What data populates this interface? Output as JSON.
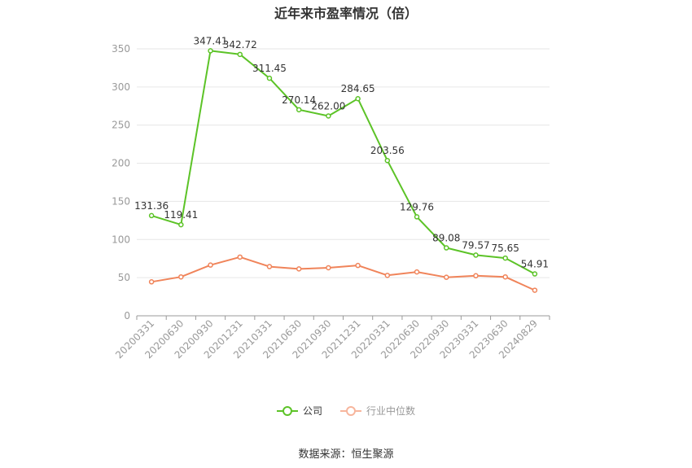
{
  "chart_data": {
    "type": "line",
    "title": "近年来市盈率情况（倍）",
    "categories": [
      "20200331",
      "20200630",
      "20200930",
      "20201231",
      "20210331",
      "20210630",
      "20210930",
      "20211231",
      "20220331",
      "20220630",
      "20220930",
      "20230331",
      "20230630",
      "20240829"
    ],
    "ylim": [
      0,
      350
    ],
    "yticks": [
      0,
      50,
      100,
      150,
      200,
      250,
      300,
      350
    ],
    "grid": true,
    "legend_position": "bottom",
    "series": [
      {
        "name": "公司",
        "color": "#5cc327",
        "show_labels": true,
        "labels": [
          "131.36",
          "119.41",
          "347.41",
          "342.72",
          "311.45",
          "270.14",
          "262.00",
          "284.65",
          "203.56",
          "129.76",
          "89.08",
          "79.57",
          "75.65",
          "54.91"
        ],
        "values": [
          131.36,
          119.41,
          347.41,
          342.72,
          311.45,
          270.14,
          262.0,
          284.65,
          203.56,
          129.76,
          89.08,
          79.57,
          75.65,
          54.91
        ]
      },
      {
        "name": "行业中位数",
        "color": "#f0845a",
        "show_labels": false,
        "values": [
          44.5,
          51,
          66.5,
          77,
          64.5,
          61.5,
          63,
          66,
          53,
          57.5,
          50.5,
          52.5,
          51,
          33.5
        ]
      }
    ]
  },
  "source_text": "数据来源：恒生聚源"
}
